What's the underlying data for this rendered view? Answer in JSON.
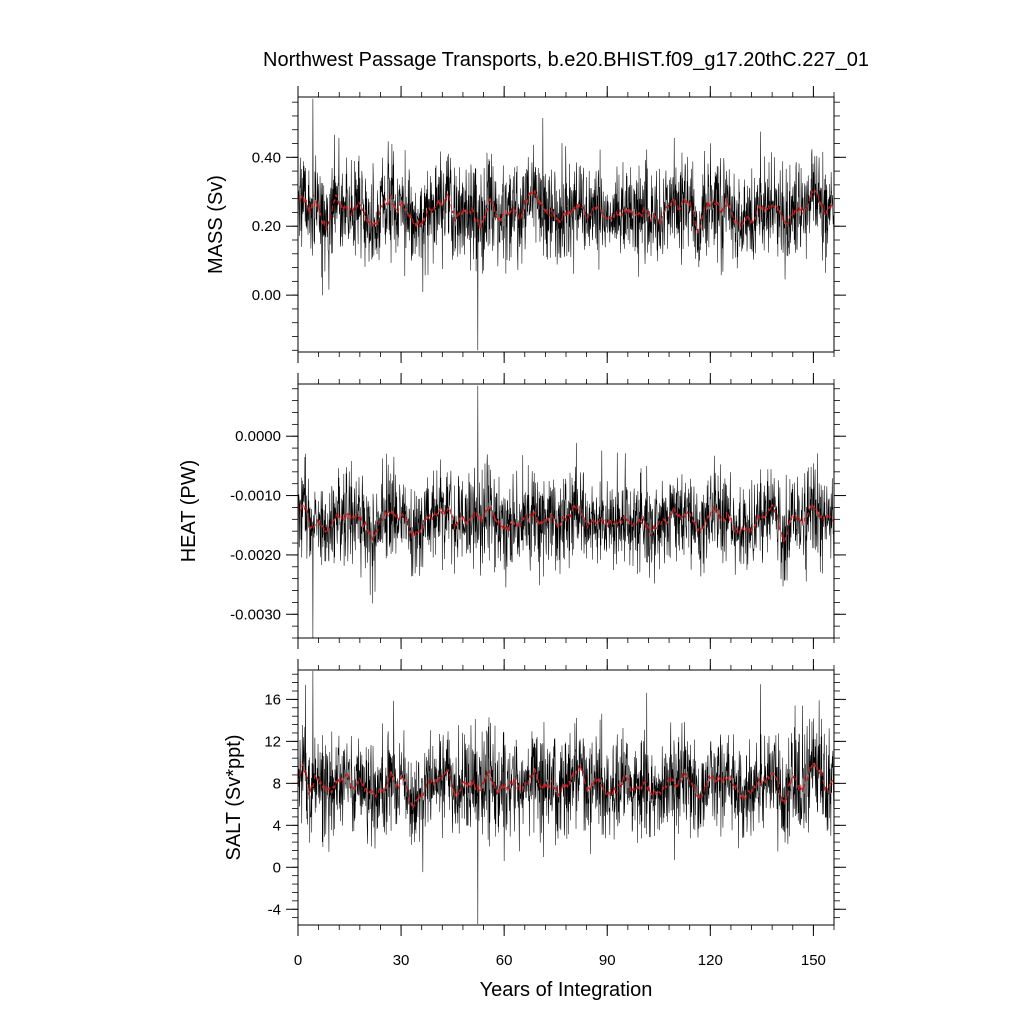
{
  "title": "Northwest Passage Transports, b.e20.BHIST.f09_g17.20thC.227_01",
  "chart_data": {
    "type": "line",
    "title": "Northwest Passage Transports, b.e20.BHIST.f09_g17.20thC.227_01",
    "xlabel": "Years of Integration",
    "xlim": [
      0,
      156
    ],
    "xticks": [
      0,
      30,
      60,
      90,
      120,
      150
    ],
    "xtick_labels": [
      "0",
      "30",
      "60",
      "90",
      "120",
      "150"
    ],
    "n_months": 1872,
    "series_colors": {
      "monthly": "#000000",
      "running_mean": "#cc2222"
    },
    "panels": [
      {
        "name": "mass",
        "ylabel": "MASS (Sv)",
        "ylim": [
          -0.165,
          0.575
        ],
        "yticks": [
          0.0,
          0.2,
          0.4
        ],
        "ytick_labels": [
          "0.00",
          "0.20",
          "0.40"
        ],
        "mean": 0.245,
        "noise_sd": 0.075,
        "wave_amp": 0.035,
        "min": -0.16,
        "max": 0.57
      },
      {
        "name": "heat",
        "ylabel": "HEAT (PW)",
        "ylim": [
          -0.0034,
          0.00088
        ],
        "yticks": [
          -0.003,
          -0.002,
          -0.001,
          0.0
        ],
        "ytick_labels": [
          "-0.0030",
          "-0.0020",
          "-0.0010",
          "0.0000"
        ],
        "mean": -0.00142,
        "noise_sd": 0.0004,
        "wave_amp": 0.00018,
        "min": -0.0034,
        "max": 0.00085
      },
      {
        "name": "salt",
        "ylabel": "SALT (Sv*ppt)",
        "ylim": [
          -5.5,
          18.8
        ],
        "yticks": [
          -4,
          0,
          4,
          8,
          12,
          16
        ],
        "ytick_labels": [
          "-4",
          "0",
          "4",
          "8",
          "12",
          "16"
        ],
        "mean": 7.9,
        "noise_sd": 2.5,
        "wave_amp": 1.1,
        "min": -5.4,
        "max": 18.7
      }
    ]
  }
}
